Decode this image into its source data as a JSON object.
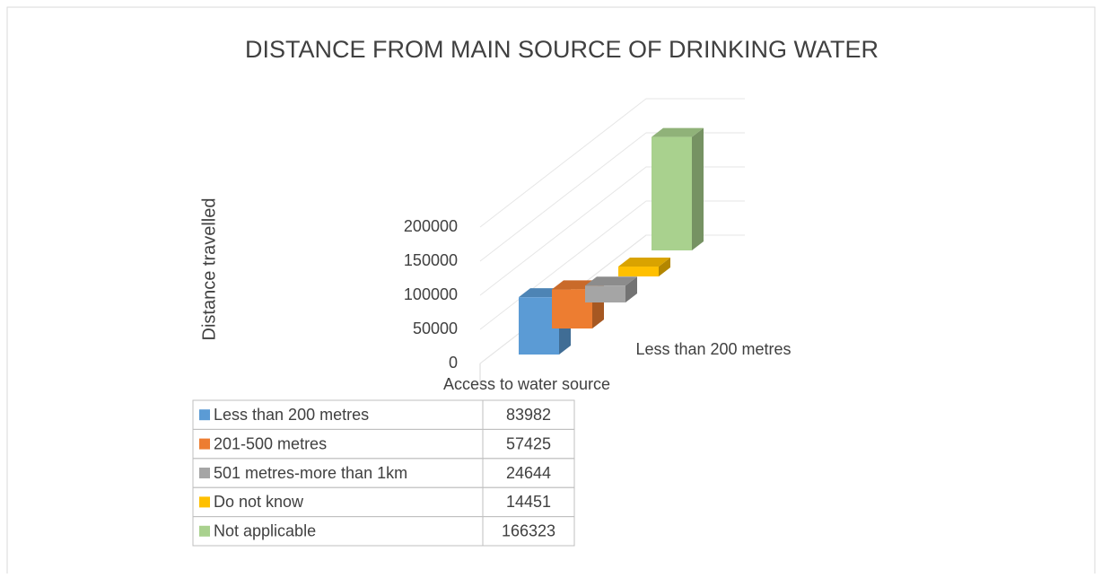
{
  "chart_data": {
    "type": "bar3d",
    "title": "DISTANCE FROM MAIN SOURCE OF DRINKING WATER",
    "y_label": "Distance travelled",
    "x_label": "Access to water source",
    "categories": [
      "Less than 200 metres"
    ],
    "series": [
      {
        "name": "Less than 200 metres",
        "color": "#5b9bd5",
        "values": [
          83982
        ]
      },
      {
        "name": "201-500 metres",
        "color": "#ed7d31",
        "values": [
          57425
        ]
      },
      {
        "name": "501 metres-more than 1km",
        "color": "#a5a5a5",
        "values": [
          24644
        ]
      },
      {
        "name": "Do not know",
        "color": "#ffc000",
        "values": [
          14451
        ]
      },
      {
        "name": "Not applicable",
        "color": "#a9d18e",
        "values": [
          166323
        ]
      }
    ],
    "ylim": [
      0,
      200000
    ],
    "yticks": [
      0,
      50000,
      100000,
      150000,
      200000
    ],
    "grid": true,
    "data_table": true
  }
}
